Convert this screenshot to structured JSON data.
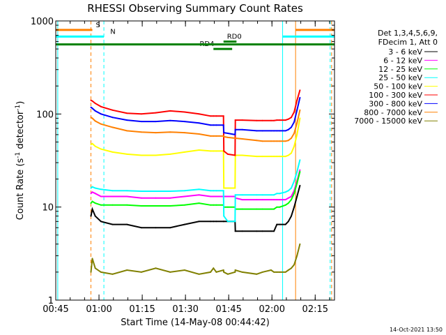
{
  "chart_data": {
    "type": "line",
    "title": "RHESSI Observing Summary Count Rates",
    "xlabel": "Start Time (14-May-08 00:44:42)",
    "ylabel_parts": [
      "Count Rate (s",
      "-1",
      " detector",
      "-1",
      ")"
    ],
    "x_unit": "minutes after 00:44:42 UT",
    "xlim": [
      0.3,
      97.0
    ],
    "ylim": [
      1,
      1000
    ],
    "yscale": "log",
    "x_ticks": [
      {
        "t": 0.3,
        "label": "00:45"
      },
      {
        "t": 15.3,
        "label": "01:00"
      },
      {
        "t": 30.3,
        "label": "01:15"
      },
      {
        "t": 45.3,
        "label": "01:30"
      },
      {
        "t": 60.3,
        "label": "01:45"
      },
      {
        "t": 75.3,
        "label": "02:00"
      },
      {
        "t": 90.3,
        "label": "02:15"
      }
    ],
    "y_ticks": [
      {
        "v": 1,
        "label": "1"
      },
      {
        "v": 10,
        "label": "10"
      },
      {
        "v": 100,
        "label": "100"
      },
      {
        "v": 1000,
        "label": "1000"
      }
    ],
    "legend_header": [
      "Det 1,3,4,5,6,9,",
      "FDecim 1, Att 0"
    ],
    "series": [
      {
        "name": "3 - 6 keV",
        "color": "#000000",
        "x": [
          12.5,
          13,
          14,
          16,
          20,
          25,
          30,
          35,
          40,
          45,
          50,
          54,
          55,
          56,
          58.5,
          58.6,
          60,
          62.5,
          62.6,
          65,
          70,
          72,
          75,
          76,
          77,
          78,
          80,
          81,
          82,
          83,
          84,
          85
        ],
        "y": [
          8,
          9.5,
          8,
          7,
          6.5,
          6.5,
          6,
          6,
          6,
          6.5,
          7,
          7,
          7,
          7,
          7,
          7,
          7,
          7,
          5.5,
          5.5,
          5.5,
          5.5,
          5.5,
          5.5,
          6.5,
          6.5,
          6.5,
          7,
          8,
          10,
          13,
          17
        ]
      },
      {
        "name": "6 - 12 keV",
        "color": "#ff00ff",
        "x": [
          12.5,
          13,
          14,
          16,
          20,
          25,
          30,
          35,
          40,
          45,
          50,
          54,
          55,
          56,
          58.5,
          58.6,
          60,
          62.5,
          62.6,
          65,
          70,
          72,
          75,
          76,
          77,
          78,
          80,
          81,
          82,
          83,
          84,
          85
        ],
        "y": [
          14,
          14.5,
          14,
          13,
          13,
          13,
          12.5,
          12.5,
          12.5,
          13,
          13.5,
          13,
          13,
          13,
          13,
          13,
          13,
          13,
          12.5,
          12,
          12,
          12,
          12,
          12,
          12,
          12,
          12,
          12.5,
          13,
          15,
          19,
          25
        ]
      },
      {
        "name": "12 - 25 keV",
        "color": "#00ff00",
        "x": [
          12.5,
          13,
          14,
          16,
          20,
          25,
          30,
          35,
          40,
          45,
          50,
          54,
          55,
          56,
          58.5,
          58.6,
          60,
          62.5,
          62.6,
          65,
          70,
          72,
          75,
          76,
          77,
          78,
          80,
          81,
          82,
          83,
          84,
          85
        ],
        "y": [
          11,
          11.5,
          11,
          10.5,
          10.5,
          10.5,
          10.3,
          10.3,
          10.3,
          10.5,
          11,
          10.5,
          10.5,
          10.5,
          10.5,
          10,
          10,
          10,
          9.5,
          9.5,
          9.5,
          9.5,
          9.5,
          9.5,
          10,
          10,
          10.5,
          11,
          12,
          14,
          18,
          24
        ]
      },
      {
        "name": "25 - 50 keV",
        "color": "#00ffff",
        "x": [
          12.5,
          13,
          14,
          16,
          20,
          25,
          30,
          35,
          40,
          45,
          50,
          54,
          55,
          56,
          58.5,
          58.6,
          60,
          62.5,
          62.6,
          65,
          70,
          72,
          75,
          76,
          77,
          78,
          80,
          81,
          82,
          83,
          84,
          85
        ],
        "y": [
          16,
          16.5,
          16,
          15.5,
          15,
          15,
          14.8,
          14.8,
          14.8,
          15,
          15.5,
          15,
          15,
          15,
          15,
          8,
          7,
          7,
          13.5,
          13.5,
          13.5,
          13.5,
          13.5,
          13.5,
          14,
          14,
          14.5,
          15,
          16,
          19,
          24,
          32
        ]
      },
      {
        "name": "50 - 100 keV",
        "color": "#ffff00",
        "x": [
          12.5,
          13,
          14,
          16,
          20,
          25,
          30,
          35,
          40,
          45,
          50,
          54,
          55,
          56,
          58.5,
          58.6,
          60,
          62.5,
          62.6,
          65,
          70,
          72,
          75,
          76,
          77,
          78,
          80,
          81,
          82,
          83,
          84,
          85
        ],
        "y": [
          47,
          48,
          45,
          42,
          39,
          37,
          36,
          36,
          37,
          39,
          41,
          40,
          40,
          40,
          40,
          16,
          16,
          16,
          36,
          36,
          35,
          35,
          35,
          35,
          35,
          35,
          35,
          36,
          38,
          45,
          60,
          90
        ]
      },
      {
        "name": "100 - 300 keV",
        "color": "#ff0000",
        "x": [
          12.5,
          13,
          14,
          16,
          20,
          25,
          30,
          35,
          40,
          45,
          50,
          54,
          55,
          56,
          58.5,
          58.6,
          60,
          62.5,
          62.6,
          65,
          70,
          72,
          75,
          76,
          77,
          78,
          80,
          81,
          82,
          83,
          84,
          85
        ],
        "y": [
          140,
          138,
          130,
          120,
          110,
          102,
          100,
          103,
          108,
          105,
          100,
          95,
          95,
          95,
          95,
          40,
          37,
          36,
          86,
          86,
          85,
          85,
          85,
          85,
          86,
          86,
          86,
          88,
          92,
          105,
          140,
          180
        ]
      },
      {
        "name": "300 - 800 keV",
        "color": "#0000ff",
        "x": [
          12.5,
          13,
          14,
          16,
          20,
          25,
          30,
          35,
          40,
          45,
          50,
          54,
          55,
          56,
          58.5,
          58.6,
          60,
          62.5,
          62.6,
          65,
          70,
          72,
          75,
          76,
          77,
          78,
          80,
          81,
          82,
          83,
          84,
          85
        ],
        "y": [
          118,
          115,
          108,
          100,
          92,
          86,
          83,
          83,
          85,
          83,
          80,
          76,
          76,
          76,
          76,
          63,
          62,
          60,
          68,
          68,
          66,
          66,
          66,
          66,
          66,
          66,
          66,
          68,
          72,
          82,
          110,
          150
        ]
      },
      {
        "name": "800 - 7000 keV",
        "color": "#ff8000",
        "x": [
          12.5,
          13,
          14,
          16,
          20,
          25,
          30,
          35,
          40,
          45,
          50,
          54,
          55,
          56,
          58.5,
          58.6,
          60,
          62.5,
          62.6,
          65,
          70,
          72,
          75,
          76,
          77,
          78,
          80,
          81,
          82,
          83,
          84,
          85
        ],
        "y": [
          92,
          90,
          84,
          78,
          72,
          66,
          64,
          63,
          64,
          63,
          61,
          58,
          58,
          58,
          58,
          57,
          56,
          55,
          55,
          54,
          52,
          51,
          51,
          51,
          51,
          51,
          51,
          52,
          55,
          62,
          80,
          110
        ]
      },
      {
        "name": "7000 - 15000 keV",
        "color": "#808000",
        "x": [
          12.5,
          13,
          14,
          16,
          20,
          25,
          30,
          35,
          40,
          45,
          50,
          54,
          55,
          56,
          58.5,
          58.6,
          60,
          62.5,
          62.6,
          65,
          70,
          72,
          75,
          76,
          77,
          78,
          80,
          81,
          82,
          83,
          84,
          85
        ],
        "y": [
          2,
          2.8,
          2.2,
          2,
          1.9,
          2.1,
          2,
          2.2,
          2,
          2.1,
          1.9,
          2,
          2.2,
          2,
          2.1,
          2,
          1.9,
          2,
          2.1,
          2,
          1.9,
          2,
          2.1,
          2,
          2,
          2,
          2,
          2.1,
          2.2,
          2.4,
          3,
          4
        ]
      }
    ],
    "attenuator_bars": [
      {
        "label": "S",
        "color": "#ff8000",
        "start": 0.3,
        "end": 13.0,
        "level": 800,
        "label_at": 13.0
      },
      {
        "label": "N",
        "color": "#00ffff",
        "start": 0.3,
        "end": 17.0,
        "level": 680,
        "label_at": 18.0
      },
      {
        "label": "RD0",
        "color": "#008000",
        "start": 58.5,
        "end": 63.0,
        "level": 600,
        "label_at": 58.5
      },
      {
        "label": "RD4",
        "color": "#008000",
        "start": 55.0,
        "end": 61.5,
        "level": 500,
        "label_at": 49.0
      },
      {
        "label": "",
        "color": "#008000",
        "start": 0.3,
        "end": 97.0,
        "level": 560,
        "label_at": 0.3
      },
      {
        "label": "",
        "color": "#00ffff",
        "start": 79.0,
        "end": 97.0,
        "level": 680,
        "label_at": 79.0
      },
      {
        "label": "",
        "color": "#ff8000",
        "start": 83.5,
        "end": 97.0,
        "level": 800,
        "label_at": 83.5
      }
    ],
    "vlines": [
      {
        "t": 1.0,
        "color": "#00ffff",
        "dashed": false
      },
      {
        "t": 12.5,
        "color": "#ff8000",
        "dashed": true
      },
      {
        "t": 17.0,
        "color": "#00ffff",
        "dashed": true
      },
      {
        "t": 79.0,
        "color": "#00ffff",
        "dashed": false
      },
      {
        "t": 83.5,
        "color": "#ff8000",
        "dashed": false
      },
      {
        "t": 95.5,
        "color": "#00ffff",
        "dashed": true
      },
      {
        "t": 96.0,
        "color": "#ff8000",
        "dashed": true
      }
    ],
    "grid": false,
    "legend_position": "right"
  },
  "footer": {
    "date": "14-Oct-2021 13:50"
  }
}
